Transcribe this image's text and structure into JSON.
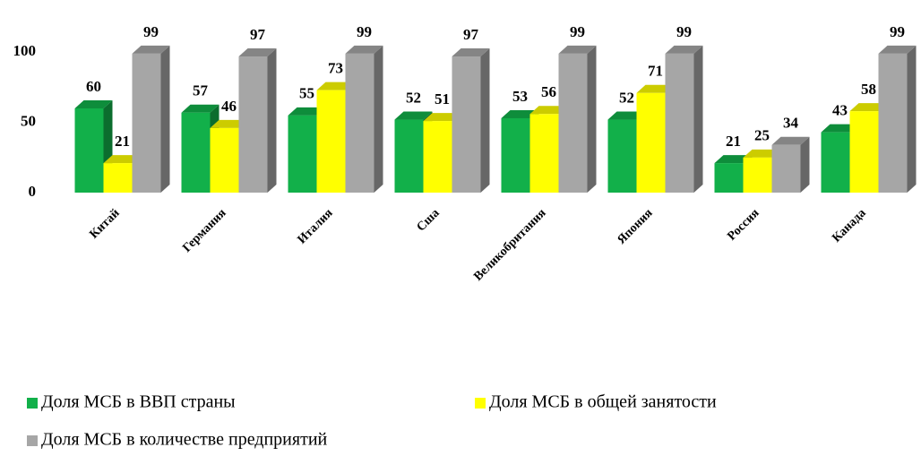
{
  "chart_data": {
    "type": "bar3d",
    "categories": [
      "Китай",
      "Германия",
      "Италия",
      "Сша",
      "Великобритания",
      "Япония",
      "Россия",
      "Канада"
    ],
    "series": [
      {
        "name": "Доля МСБ в ВВП страны",
        "color": "#12b04a",
        "values": [
          60,
          57,
          55,
          52,
          53,
          52,
          21,
          43
        ]
      },
      {
        "name": "Доля МСБ в общей занятости",
        "color": "#ffff00",
        "values": [
          21,
          46,
          73,
          51,
          56,
          71,
          25,
          58
        ]
      },
      {
        "name": "Доля МСБ в количестве предприятий",
        "color": "#a6a6a6",
        "values": [
          99,
          97,
          99,
          97,
          99,
          99,
          34,
          99
        ]
      }
    ],
    "ylim": [
      0,
      120
    ],
    "yticks": [
      0,
      50,
      100
    ],
    "grid": false,
    "legend": "bottom"
  }
}
